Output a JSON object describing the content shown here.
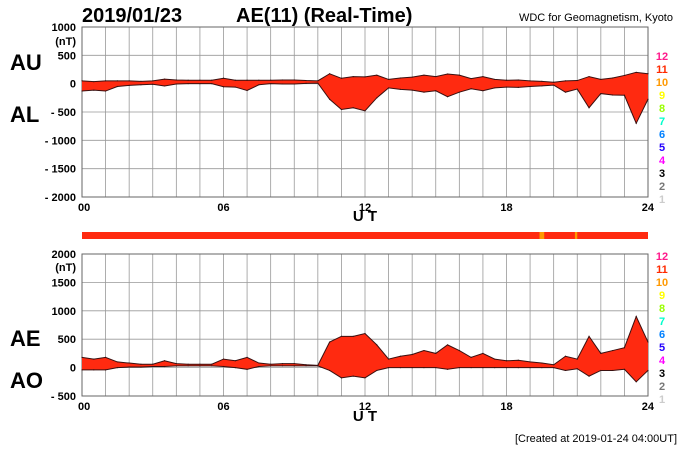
{
  "header": {
    "date": "2019/01/23",
    "title": "AE(11) (Real-Time)",
    "source": "WDC for Geomagnetism, Kyoto",
    "created": "[Created at 2019-01-24 04:00UT]"
  },
  "legend": {
    "labels": [
      "12",
      "11",
      "10",
      "9",
      "8",
      "7",
      "6",
      "5",
      "4",
      "3",
      "2",
      "1"
    ],
    "colors": [
      "#ff1a8c",
      "#ff2a00",
      "#ff9900",
      "#ffff00",
      "#99ff00",
      "#00ffcc",
      "#0080ff",
      "#2200ff",
      "#ff00ff",
      "#000000",
      "#777777",
      "#cccccc"
    ]
  },
  "colors": {
    "fill": "#ff2a10",
    "outline": "#3a1010",
    "grid": "#999999",
    "station_bar": "#ff2a10",
    "station_bar_alt": "#ff9900"
  },
  "chart_data": [
    {
      "type": "area",
      "title": "AU / AL",
      "label_upper": "AU",
      "label_lower": "AL",
      "unit": "(nT)",
      "xlabel": "U T",
      "xlim": [
        0,
        24
      ],
      "ylim": [
        -2000,
        1000
      ],
      "yticks": [
        "1000",
        "500",
        "0",
        "- 500",
        "- 1000",
        "- 1500",
        "- 2000"
      ],
      "ytick_values": [
        1000,
        500,
        0,
        -500,
        -1000,
        -1500,
        -2000
      ],
      "xticks": [
        "00",
        "06",
        "12",
        "18",
        "24"
      ],
      "xtick_values": [
        0,
        6,
        12,
        18,
        24
      ],
      "grid": true,
      "x": [
        0,
        0.5,
        1,
        1.5,
        2,
        2.5,
        3,
        3.5,
        4,
        4.5,
        5,
        5.5,
        6,
        6.5,
        7,
        7.5,
        8,
        8.5,
        9,
        9.5,
        10,
        10.5,
        11,
        11.5,
        12,
        12.5,
        13,
        13.5,
        14,
        14.5,
        15,
        15.5,
        16,
        16.5,
        17,
        17.5,
        18,
        18.5,
        19,
        19.5,
        20,
        20.5,
        21,
        21.5,
        22,
        22.5,
        23,
        23.5,
        24
      ],
      "series": [
        {
          "name": "AU",
          "values": [
            50,
            35,
            50,
            50,
            50,
            40,
            50,
            80,
            65,
            60,
            60,
            60,
            95,
            60,
            60,
            60,
            60,
            65,
            65,
            55,
            50,
            175,
            95,
            125,
            120,
            150,
            75,
            100,
            115,
            150,
            125,
            170,
            150,
            90,
            125,
            75,
            60,
            65,
            50,
            40,
            25,
            50,
            55,
            125,
            75,
            100,
            145,
            200,
            175
          ]
        },
        {
          "name": "AL",
          "values": [
            -130,
            -115,
            -130,
            -50,
            -30,
            -20,
            -10,
            -40,
            -5,
            0,
            0,
            0,
            -55,
            -60,
            -120,
            -20,
            0,
            -5,
            -5,
            5,
            10,
            -275,
            -455,
            -425,
            -480,
            -250,
            -75,
            -100,
            -115,
            -150,
            -125,
            -230,
            -150,
            -90,
            -125,
            -75,
            -60,
            -65,
            -50,
            -40,
            -25,
            -150,
            -95,
            -425,
            -175,
            -200,
            -205,
            -700,
            -275
          ]
        }
      ]
    },
    {
      "type": "area",
      "title": "AE / AO",
      "label_upper": "AE",
      "label_lower": "AO",
      "unit": "(nT)",
      "xlabel": "U T",
      "xlim": [
        0,
        24
      ],
      "ylim": [
        -500,
        2000
      ],
      "yticks": [
        "2000",
        "1500",
        "1000",
        "500",
        "0",
        "- 500"
      ],
      "ytick_values": [
        2000,
        1500,
        1000,
        500,
        0,
        -500
      ],
      "xticks": [
        "00",
        "06",
        "12",
        "18",
        "24"
      ],
      "xtick_values": [
        0,
        6,
        12,
        18,
        24
      ],
      "grid": true,
      "x": [
        0,
        0.5,
        1,
        1.5,
        2,
        2.5,
        3,
        3.5,
        4,
        4.5,
        5,
        5.5,
        6,
        6.5,
        7,
        7.5,
        8,
        8.5,
        9,
        9.5,
        10,
        10.5,
        11,
        11.5,
        12,
        12.5,
        13,
        13.5,
        14,
        14.5,
        15,
        15.5,
        16,
        16.5,
        17,
        17.5,
        18,
        18.5,
        19,
        19.5,
        20,
        20.5,
        21,
        21.5,
        22,
        22.5,
        23,
        23.5,
        24
      ],
      "series": [
        {
          "name": "AE",
          "values": [
            180,
            150,
            180,
            100,
            80,
            60,
            60,
            120,
            70,
            60,
            60,
            60,
            150,
            120,
            180,
            80,
            60,
            70,
            70,
            50,
            40,
            450,
            550,
            550,
            600,
            400,
            150,
            200,
            230,
            300,
            250,
            400,
            300,
            180,
            250,
            150,
            120,
            130,
            100,
            80,
            50,
            200,
            150,
            550,
            250,
            300,
            350,
            900,
            450
          ]
        },
        {
          "name": "AO",
          "values": [
            -40,
            -40,
            -40,
            0,
            10,
            10,
            20,
            20,
            30,
            30,
            30,
            30,
            20,
            0,
            -30,
            20,
            30,
            30,
            30,
            30,
            30,
            -50,
            -180,
            -150,
            -180,
            -50,
            0,
            0,
            0,
            0,
            0,
            -30,
            0,
            0,
            0,
            0,
            0,
            0,
            0,
            0,
            0,
            -50,
            -20,
            -150,
            -50,
            -50,
            -30,
            -250,
            -50
          ]
        }
      ]
    }
  ],
  "station_count_bar": {
    "alt_segments_hours": [
      19.4,
      19.6,
      20.9,
      21.0
    ]
  }
}
